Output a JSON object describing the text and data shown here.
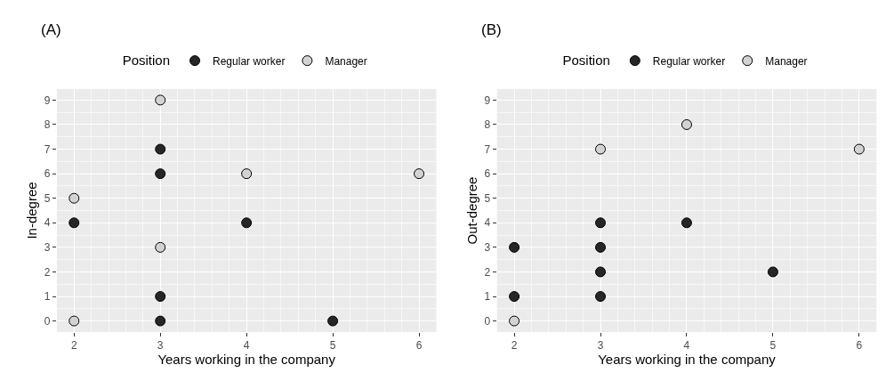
{
  "chart_data": [
    {
      "type": "scatter",
      "title": "(A)",
      "xlabel": "Years working in the company",
      "ylabel": "In-degree",
      "legend_title": "Position",
      "legend": "top",
      "marker": "circle",
      "grid": true,
      "xlim": [
        1.8,
        6.2
      ],
      "ylim": [
        -0.45,
        9.45
      ],
      "xticks": [
        2,
        3,
        4,
        5,
        6
      ],
      "yticks": [
        0,
        1,
        2,
        3,
        4,
        5,
        6,
        7,
        8,
        9
      ],
      "series": [
        {
          "name": "Regular worker",
          "color": "#262626",
          "x": [
            2,
            3,
            3,
            3,
            3,
            4,
            5
          ],
          "values": [
            4,
            7,
            6,
            1,
            0,
            4,
            0
          ]
        },
        {
          "name": "Manager",
          "color": "#d3d3d3",
          "x": [
            2,
            2,
            3,
            3,
            4,
            6
          ],
          "values": [
            5,
            0,
            9,
            3,
            6,
            6
          ]
        }
      ]
    },
    {
      "type": "scatter",
      "title": "(B)",
      "xlabel": "Years working in the company",
      "ylabel": "Out-degree",
      "legend_title": "Position",
      "legend": "top",
      "marker": "circle",
      "grid": true,
      "xlim": [
        1.8,
        6.2
      ],
      "ylim": [
        -0.45,
        9.45
      ],
      "xticks": [
        2,
        3,
        4,
        5,
        6
      ],
      "yticks": [
        0,
        1,
        2,
        3,
        4,
        5,
        6,
        7,
        8,
        9
      ],
      "series": [
        {
          "name": "Regular worker",
          "color": "#262626",
          "x": [
            2,
            2,
            3,
            3,
            3,
            3,
            4,
            5
          ],
          "values": [
            3,
            1,
            4,
            3,
            2,
            1,
            4,
            2
          ]
        },
        {
          "name": "Manager",
          "color": "#d3d3d3",
          "x": [
            2,
            3,
            4,
            6
          ],
          "values": [
            0,
            7,
            8,
            7
          ]
        }
      ]
    }
  ]
}
